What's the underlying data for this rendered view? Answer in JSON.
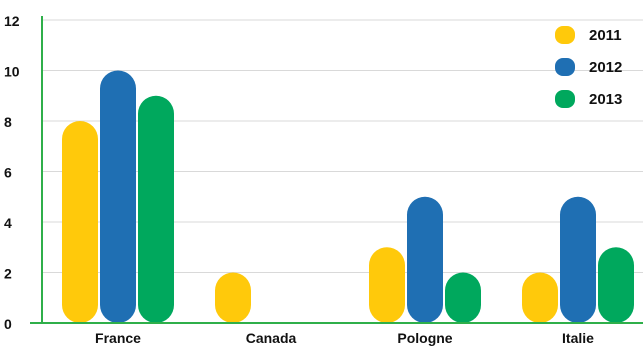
{
  "chart_data": {
    "type": "bar",
    "categories": [
      "France",
      "Canada",
      "Pologne",
      "Italie"
    ],
    "series": [
      {
        "name": "2011",
        "color": "#FFC90B",
        "values": [
          8,
          2,
          3,
          2
        ]
      },
      {
        "name": "2012",
        "color": "#1F6FB3",
        "values": [
          10,
          0,
          5,
          5
        ]
      },
      {
        "name": "2013",
        "color": "#00A85D",
        "values": [
          9,
          0,
          2,
          3
        ]
      }
    ],
    "title": "",
    "xlabel": "",
    "ylabel": "",
    "ylim": [
      0,
      12
    ],
    "yticks": [
      "0",
      "2",
      "4",
      "6",
      "8",
      "10",
      "12"
    ],
    "grid": true,
    "legend_position": "top-right",
    "colors": {
      "axis": "#2FAF4A",
      "grid": "#D9D9D9"
    }
  }
}
